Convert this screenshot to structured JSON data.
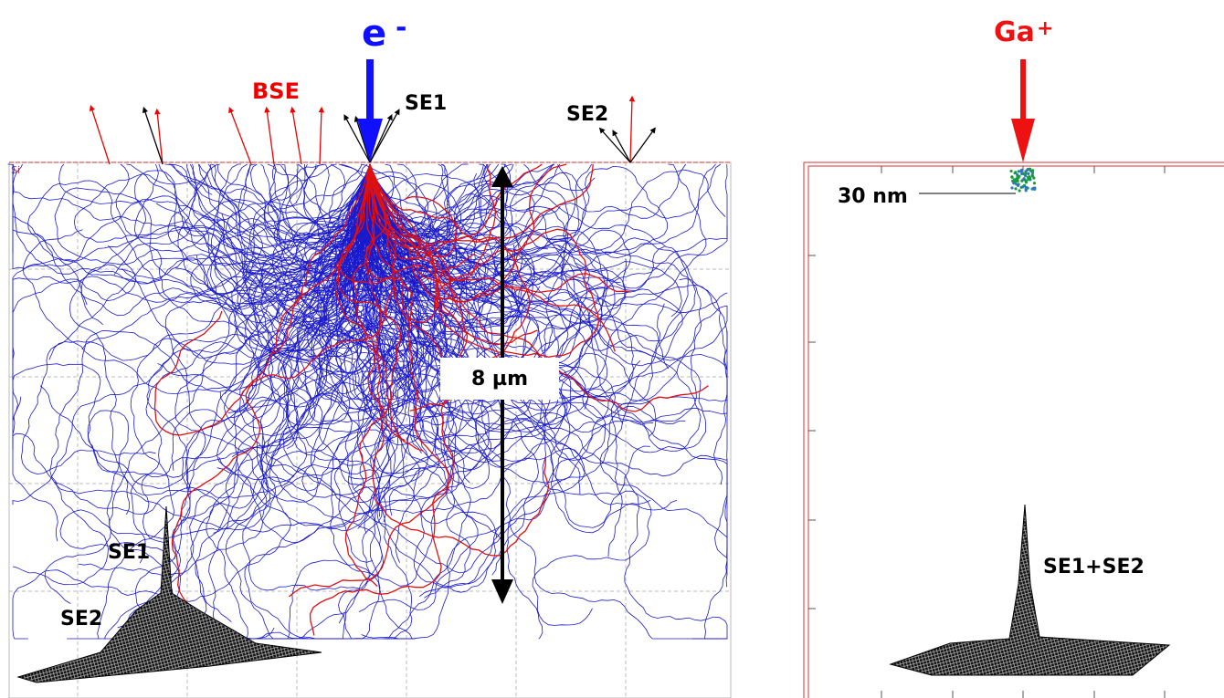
{
  "left_panel": {
    "beam_label": "e",
    "beam_charge": "-",
    "material": "Si",
    "bse_label": "BSE",
    "se1_label": "SE1",
    "se2_label": "SE2",
    "depth_label": "8 µm",
    "profile_se1_label": "SE1",
    "profile_se2_label": "SE2"
  },
  "right_panel": {
    "beam_label": "Ga",
    "beam_charge": "+",
    "size_label": "30 nm",
    "profile_label": "SE1+SE2"
  }
}
